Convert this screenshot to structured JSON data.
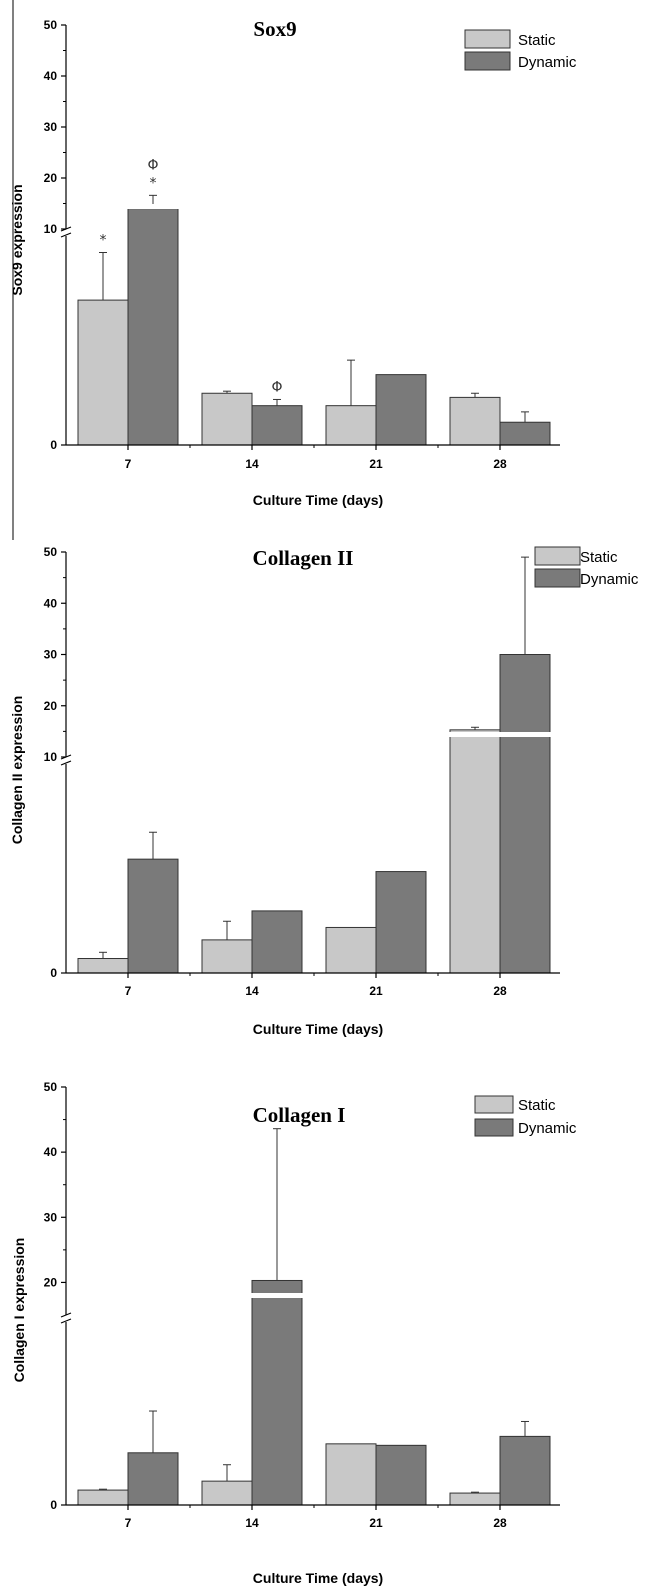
{
  "chart_data": [
    {
      "type": "bar",
      "title": "Sox9",
      "xlabel": "Culture Time (days)",
      "ylabel": "Sox9 expression",
      "categories": [
        "7",
        "14",
        "21",
        "28"
      ],
      "upper_ticks": [
        "10",
        "20",
        "30",
        "40",
        "50"
      ],
      "zero_tick": "0",
      "axis_break": true,
      "lower_segment": {
        "ylim": [
          0,
          5
        ],
        "shown_in_units": "relative"
      },
      "legend": {
        "position": "top-right",
        "entries": [
          "Static",
          "Dynamic"
        ]
      },
      "series": [
        {
          "name": "Static",
          "color": "#c8c8c8",
          "values": [
            3.5,
            1.25,
            0.95,
            1.15
          ],
          "errors": [
            1.15,
            0.05,
            1.1,
            0.1
          ],
          "broken": [
            false,
            false,
            false,
            false
          ]
        },
        {
          "name": "Dynamic",
          "color": "#7a7a7a",
          "values": [
            14,
            0.95,
            1.7,
            0.55
          ],
          "errors": [
            2.6,
            0.15,
            0,
            0.25
          ],
          "broken": [
            true,
            false,
            false,
            false
          ]
        }
      ],
      "annotations": [
        {
          "series": "Static",
          "category": "7",
          "symbols": [
            "*"
          ]
        },
        {
          "series": "Dynamic",
          "category": "7",
          "symbols": [
            "Φ",
            "*"
          ]
        },
        {
          "series": "Dynamic",
          "category": "14",
          "symbols": [
            "Φ"
          ]
        }
      ]
    },
    {
      "type": "bar",
      "title": "Collagen II",
      "xlabel": "Culture Time (days)",
      "ylabel": "Collagen II expression",
      "categories": [
        "7",
        "14",
        "21",
        "28"
      ],
      "upper_ticks": [
        "10",
        "20",
        "30",
        "40",
        "50"
      ],
      "zero_tick": "0",
      "axis_break": true,
      "lower_segment": {
        "ylim": [
          0,
          5
        ],
        "shown_in_units": "relative"
      },
      "legend": {
        "position": "top-right",
        "entries": [
          "Static",
          "Dynamic"
        ]
      },
      "series": [
        {
          "name": "Static",
          "color": "#c8c8c8",
          "values": [
            0.35,
            0.8,
            1.1,
            15.3
          ],
          "errors": [
            0.15,
            0.45,
            0,
            0.5
          ],
          "broken": [
            false,
            false,
            false,
            true
          ]
        },
        {
          "name": "Dynamic",
          "color": "#7a7a7a",
          "values": [
            2.75,
            1.5,
            2.45,
            30
          ],
          "errors": [
            0.65,
            0,
            0,
            19
          ],
          "broken": [
            false,
            false,
            false,
            true
          ]
        }
      ],
      "annotations": []
    },
    {
      "type": "bar",
      "title": "Collagen I",
      "xlabel": "Culture Time (days)",
      "ylabel": "Collagen I expression",
      "categories": [
        "7",
        "14",
        "21",
        "28"
      ],
      "upper_ticks": [
        "20",
        "30",
        "40",
        "50"
      ],
      "zero_tick": "0",
      "axis_break": true,
      "lower_segment": {
        "ylim": [
          0,
          6
        ],
        "shown_in_units": "relative"
      },
      "legend": {
        "position": "top-right",
        "entries": [
          "Static",
          "Dynamic"
        ]
      },
      "series": [
        {
          "name": "Static",
          "color": "#c8c8c8",
          "values": [
            0.5,
            0.8,
            2.05,
            0.4
          ],
          "errors": [
            0.03,
            0.55,
            0,
            0.03
          ],
          "broken": [
            false,
            false,
            false,
            false
          ]
        },
        {
          "name": "Dynamic",
          "color": "#7a7a7a",
          "values": [
            1.75,
            20.3,
            2.0,
            2.3
          ],
          "errors": [
            1.4,
            23.3,
            0,
            0.5
          ],
          "broken": [
            false,
            true,
            false,
            false
          ]
        }
      ],
      "annotations": []
    }
  ]
}
